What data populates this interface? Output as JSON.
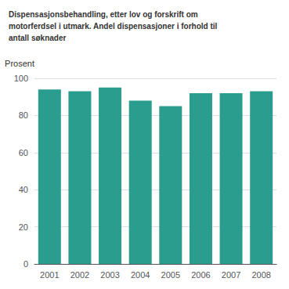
{
  "chart_data": {
    "type": "bar",
    "title": "Dispensasjonsbehandling, etter lov og forskrift om\nmotorferdsel i utmark. Andel dispensasjoner i forhold til\nantall søknader",
    "ylabel": "Prosent",
    "categories": [
      "2001",
      "2002",
      "2003",
      "2004",
      "2005",
      "2006",
      "2007",
      "2008"
    ],
    "values": [
      94,
      93,
      95,
      88,
      85,
      92,
      92,
      93
    ],
    "color": "#2a9d8f",
    "ylim": [
      0,
      100
    ],
    "yticks": [
      0,
      20,
      40,
      60,
      80,
      100
    ],
    "grid": true
  }
}
